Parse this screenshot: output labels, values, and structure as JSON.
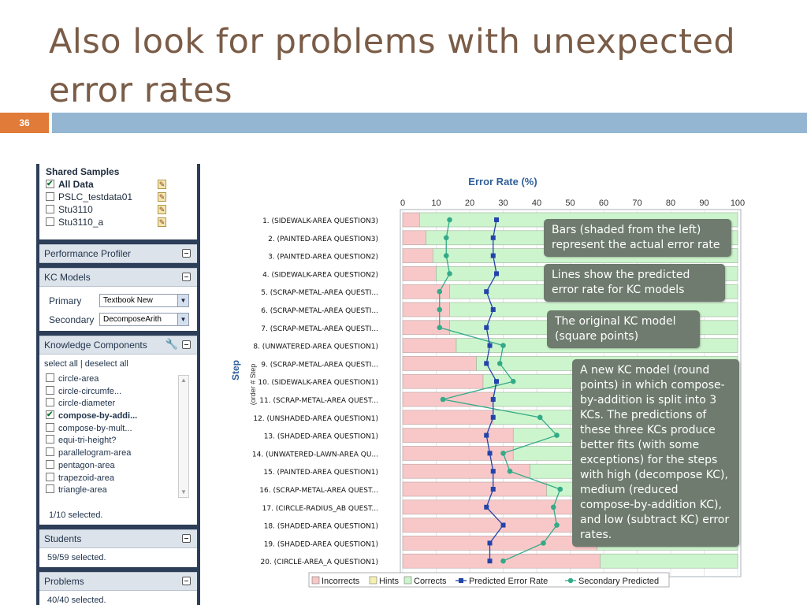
{
  "slide": {
    "title": "Also look for problems with unexpected error rates",
    "number": "36"
  },
  "panel": {
    "shared_samples": {
      "title": "Shared Samples",
      "items": [
        {
          "label": "All Data",
          "checked": true
        },
        {
          "label": "PSLC_testdata01",
          "checked": false
        },
        {
          "label": "Stu3110",
          "checked": false
        },
        {
          "label": "Stu3110_a",
          "checked": false
        }
      ]
    },
    "performance_profiler": "Performance Profiler",
    "kc_models": {
      "title": "KC Models",
      "primary_label": "Primary",
      "primary_value": "Textbook New",
      "secondary_label": "Secondary",
      "secondary_value": "DecomposeArith"
    },
    "knowledge_components": {
      "title": "Knowledge Components",
      "select_links": "select all | deselect all",
      "items": [
        {
          "label": "circle-area",
          "checked": false
        },
        {
          "label": "circle-circumfe...",
          "checked": false
        },
        {
          "label": "circle-diameter",
          "checked": false
        },
        {
          "label": "compose-by-addi...",
          "checked": true
        },
        {
          "label": "compose-by-mult...",
          "checked": false
        },
        {
          "label": "equi-tri-height?",
          "checked": false
        },
        {
          "label": "parallelogram-area",
          "checked": false
        },
        {
          "label": "pentagon-area",
          "checked": false
        },
        {
          "label": "trapezoid-area",
          "checked": false
        },
        {
          "label": "triangle-area",
          "checked": false
        }
      ],
      "selected": "1/10 selected."
    },
    "students": {
      "title": "Students",
      "selected": "59/59 selected."
    },
    "problems": {
      "title": "Problems",
      "selected": "40/40 selected."
    }
  },
  "callouts": {
    "bars": "Bars (shaded from the left) represent the actual error rate",
    "lines": "Lines show the predicted error rate for KC models",
    "original": "The original KC model (square points)",
    "new_model": "A new KC model (round points) in which compose-by-addition is split into 3 KCs. The predictions of these three KCs produce better fits (with some exceptions) for the steps with high (decompose KC), medium (reduced compose-by-addition KC), and low (subtract KC) error rates."
  },
  "chart_data": {
    "type": "bar",
    "title": "Error Rate (%)",
    "ylabel": "Step",
    "ylabel_sub": "(order # Step",
    "xlim": [
      0,
      100
    ],
    "xticks": [
      "0",
      "10",
      "20",
      "30",
      "40",
      "50",
      "60",
      "70",
      "80",
      "90",
      "100"
    ],
    "categories": [
      "1. (SIDEWALK-AREA QUESTION3)",
      "2. (PAINTED-AREA QUESTION3)",
      "3. (PAINTED-AREA QUESTION2)",
      "4. (SIDEWALK-AREA QUESTION2)",
      "5. (SCRAP-METAL-AREA QUESTI...",
      "6. (SCRAP-METAL-AREA QUESTI...",
      "7. (SCRAP-METAL-AREA QUESTI...",
      "8. (UNWATERED-AREA QUESTION1)",
      "9. (SCRAP-METAL-AREA QUESTI...",
      "10. (SIDEWALK-AREA QUESTION1)",
      "11. (SCRAP-METAL-AREA QUEST...",
      "12. (UNSHADED-AREA QUESTION1)",
      "13. (SHADED-AREA QUESTION1)",
      "14. (UNWATERED-LAWN-AREA QU...",
      "15. (PAINTED-AREA QUESTION1)",
      "16. (SCRAP-METAL-AREA QUEST...",
      "17. (CIRCLE-RADIUS_AB QUEST...",
      "18. (SHADED-AREA QUESTION1)",
      "19. (SHADED-AREA QUESTION1)",
      "20. (CIRCLE-AREA_A QUESTION1)"
    ],
    "series": [
      {
        "name": "Incorrects",
        "color": "#f8c8c8",
        "values": [
          5,
          7,
          9,
          10,
          14,
          14,
          14,
          16,
          22,
          24,
          27,
          27,
          33,
          33,
          38,
          43,
          52,
          56,
          58,
          59
        ]
      },
      {
        "name": "Hints",
        "color": "#f5f0b0",
        "values": [
          0,
          0,
          0,
          0,
          0,
          0,
          0,
          0,
          0,
          0,
          0,
          0,
          0,
          0,
          0,
          0,
          0,
          0,
          0,
          0
        ]
      },
      {
        "name": "Corrects",
        "color": "#cdf5cd",
        "values": [
          95,
          93,
          91,
          90,
          86,
          86,
          86,
          84,
          78,
          76,
          73,
          73,
          67,
          67,
          62,
          57,
          48,
          44,
          42,
          41
        ]
      },
      {
        "name": "Predicted Error Rate",
        "color": "#2244aa",
        "values": [
          28,
          27,
          27,
          28,
          25,
          27,
          25,
          26,
          25,
          28,
          27,
          27,
          25,
          26,
          27,
          27,
          25,
          30,
          26,
          26
        ]
      },
      {
        "name": "Secondary Predicted",
        "color": "#33aa88",
        "values": [
          14,
          13,
          13,
          14,
          11,
          11,
          11,
          30,
          29,
          33,
          12,
          41,
          46,
          30,
          32,
          47,
          45,
          46,
          42,
          30
        ]
      }
    ],
    "grid": true,
    "legend_position": "bottom"
  }
}
